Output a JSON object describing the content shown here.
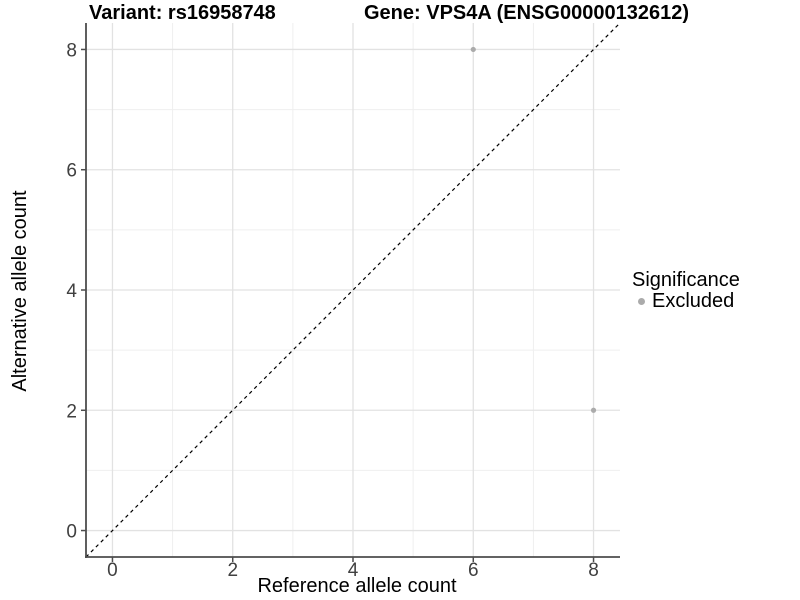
{
  "titles": {
    "variant": "Variant: rs16958748",
    "gene": "Gene: VPS4A (ENSG00000132612)"
  },
  "chart_data": {
    "type": "scatter",
    "title": "Variant: rs16958748   Gene: VPS4A (ENSG00000132612)",
    "xlabel": "Reference allele count",
    "ylabel": "Alternative allele count",
    "xlim": [
      -0.44,
      8.44
    ],
    "ylim": [
      -0.44,
      8.44
    ],
    "x_ticks": [
      0,
      2,
      4,
      6,
      8
    ],
    "y_ticks": [
      0,
      2,
      4,
      6,
      8
    ],
    "x_minor_ticks": [
      1,
      3,
      5,
      7
    ],
    "y_minor_ticks": [
      1,
      3,
      5,
      7
    ],
    "grid": true,
    "legend_position": "right",
    "series": [
      {
        "name": "Excluded",
        "color": "#ababab",
        "points": [
          [
            6,
            8
          ],
          [
            8,
            2
          ]
        ]
      }
    ],
    "reference_line": {
      "equation": "y = x",
      "style": "dashed",
      "color": "#000000"
    }
  },
  "legend": {
    "title": "Significance",
    "items": [
      {
        "label": "Excluded",
        "color": "#ababab",
        "marker": "circle"
      }
    ]
  },
  "colors": {
    "background": "#ffffff",
    "grid_major": "#e2e2e2",
    "grid_minor": "#efefef",
    "axis": "#4d4d4d",
    "tick_label": "#404040",
    "title_text": "#000000",
    "point": "#ababab"
  }
}
